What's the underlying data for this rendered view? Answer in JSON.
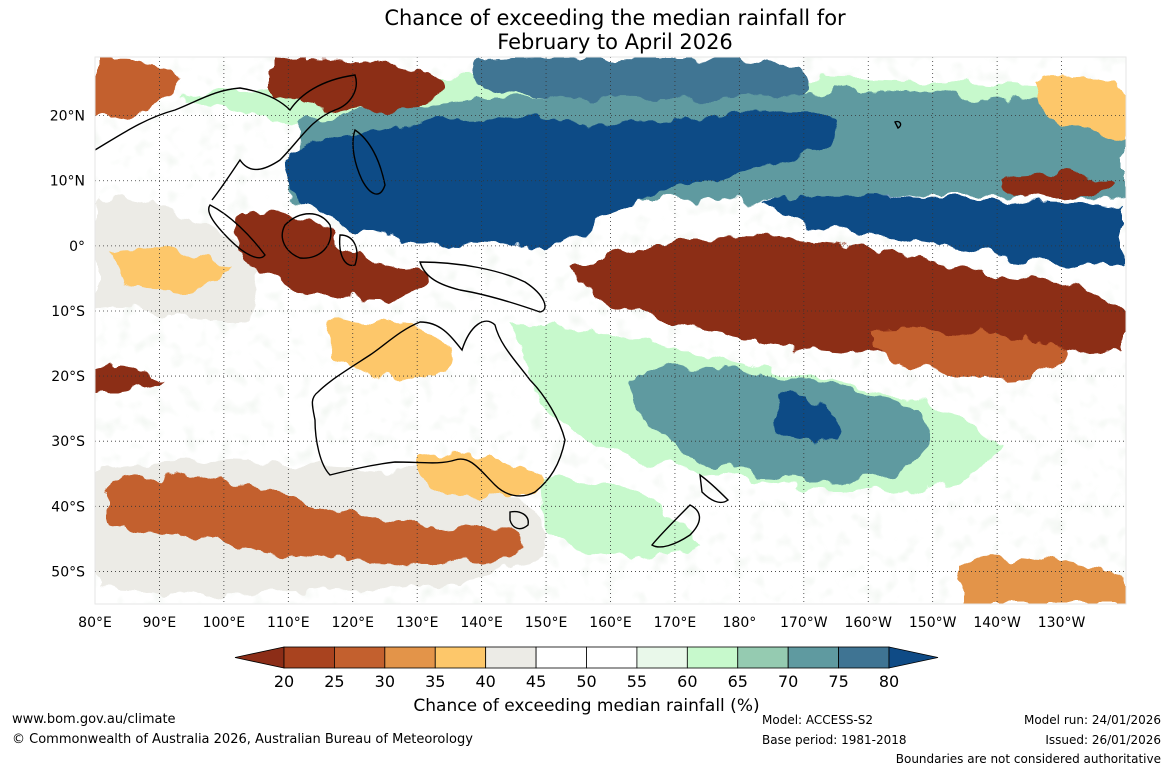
{
  "title_line1": "Chance of exceeding the median rainfall for",
  "title_line2": "February to April 2026",
  "map": {
    "lat_labels": [
      "20°N",
      "10°N",
      "0°",
      "10°S",
      "20°S",
      "30°S",
      "40°S",
      "50°S"
    ],
    "lon_labels": [
      "80°E",
      "90°E",
      "100°E",
      "110°E",
      "120°E",
      "130°E",
      "140°E",
      "150°E",
      "160°E",
      "170°E",
      "180°",
      "170°W",
      "160°W",
      "150°W",
      "140°W",
      "130°W"
    ],
    "lat_values": [
      20,
      10,
      0,
      -10,
      -20,
      -30,
      -40,
      -50
    ],
    "lon_values": [
      80,
      90,
      100,
      110,
      120,
      130,
      140,
      150,
      160,
      170,
      180,
      190,
      200,
      210,
      220,
      230
    ],
    "lat_range": [
      -55,
      29
    ],
    "lon_range": [
      80,
      240
    ],
    "regions": [
      {
        "name": "wet-band-north-pacific",
        "level": "80"
      },
      {
        "name": "wet-band-east-pacific",
        "level": "80"
      },
      {
        "name": "dry-band-equatorial-pacific",
        "level": "20"
      },
      {
        "name": "dry-maritime-continent",
        "level": "20"
      },
      {
        "name": "dry-south-china-sea",
        "level": "20"
      },
      {
        "name": "wet-coral-sea-fiji",
        "level": "75"
      },
      {
        "name": "dry-southern-indian-ocean",
        "level": "30"
      },
      {
        "name": "dry-southern-australia",
        "level": "35"
      },
      {
        "name": "dry-north-australia",
        "level": "35"
      },
      {
        "name": "dry-east-pacific-north",
        "level": "25"
      }
    ]
  },
  "colorbar": {
    "ticks": [
      "20",
      "25",
      "30",
      "35",
      "40",
      "45",
      "50",
      "55",
      "60",
      "65",
      "70",
      "75",
      "80"
    ],
    "colors": [
      "#8c2d17",
      "#a9431f",
      "#c3602e",
      "#e39449",
      "#fdc76a",
      "#ecebe6",
      "#ffffff",
      "#ffffff",
      "#e9f8ea",
      "#c7f9cc",
      "#95cbb1",
      "#5f9aa0",
      "#3f7493",
      "#0f4b86"
    ],
    "label": "Chance of exceeding median rainfall (%)"
  },
  "footer": {
    "website": "www.bom.gov.au/climate",
    "copyright": "© Commonwealth of Australia 2026, Australian Bureau of Meteorology",
    "model": "Model: ACCESS-S2",
    "base_period": "Base period: 1981-2018",
    "model_run": "Model run: 24/01/2026",
    "issued": "Issued: 26/01/2026",
    "disclaimer": "Boundaries are not considered authoritative"
  }
}
